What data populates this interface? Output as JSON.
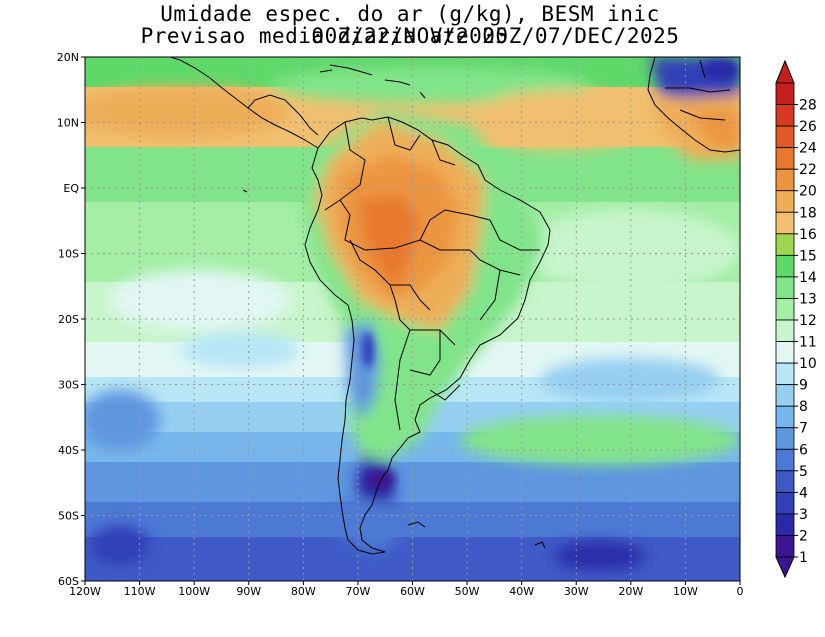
{
  "title": {
    "line1": "Umidade espec. do ar (g/kg), BESM inic 00Z/22/NOV/2025",
    "line2": "Previsao media diaria ate 00Z/07/DEC/2025"
  },
  "map": {
    "lon_range": [
      -120,
      0
    ],
    "lat_range": [
      -60,
      20
    ],
    "grid": true,
    "lat_ticks": [
      "20N",
      "10N",
      "EQ",
      "10S",
      "20S",
      "30S",
      "40S",
      "50S",
      "60S"
    ],
    "lon_ticks": [
      "120W",
      "110W",
      "100W",
      "90W",
      "80W",
      "70W",
      "60W",
      "50W",
      "40W",
      "30W",
      "20W",
      "10W",
      "0"
    ]
  },
  "colorbar": {
    "levels": [
      "1",
      "2",
      "3",
      "4",
      "5",
      "6",
      "7",
      "8",
      "9",
      "10",
      "11",
      "12",
      "13",
      "14",
      "15",
      "16",
      "18",
      "20",
      "22",
      "24",
      "26",
      "28"
    ],
    "colors": [
      "#3c1690",
      "#2a2aa8",
      "#3341b8",
      "#3f5ac6",
      "#4c79d4",
      "#5e96e0",
      "#76b6ec",
      "#96cff2",
      "#b8e6f6",
      "#e2f7f4",
      "#c8f5cc",
      "#a4eea6",
      "#82e48a",
      "#5fd86a",
      "#9ed650",
      "#f0c070",
      "#eeae58",
      "#ec9540",
      "#e8782e",
      "#e05a28",
      "#d63a22",
      "#c41e1e"
    ]
  }
}
